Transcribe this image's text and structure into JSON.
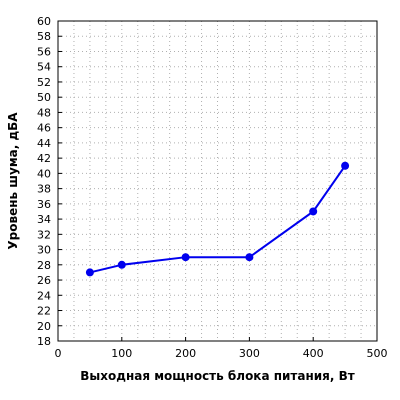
{
  "chart_data": {
    "type": "line",
    "xlabel": "Выходная мощность блока питания, Вт",
    "ylabel": "Уровень шума, дБА",
    "xlim": [
      0,
      500
    ],
    "ylim": [
      18,
      60
    ],
    "x_ticks": [
      0,
      100,
      200,
      300,
      400,
      500
    ],
    "y_ticks": [
      18,
      20,
      22,
      24,
      26,
      28,
      30,
      32,
      34,
      36,
      38,
      40,
      42,
      44,
      46,
      48,
      50,
      52,
      54,
      56,
      58,
      60
    ],
    "x_minor_step": 25,
    "grid": true,
    "series": [
      {
        "color": "#0000ee",
        "points": [
          {
            "x": 50,
            "y": 27
          },
          {
            "x": 100,
            "y": 28
          },
          {
            "x": 200,
            "y": 29
          },
          {
            "x": 300,
            "y": 29
          },
          {
            "x": 400,
            "y": 35
          },
          {
            "x": 450,
            "y": 41
          }
        ]
      }
    ]
  }
}
